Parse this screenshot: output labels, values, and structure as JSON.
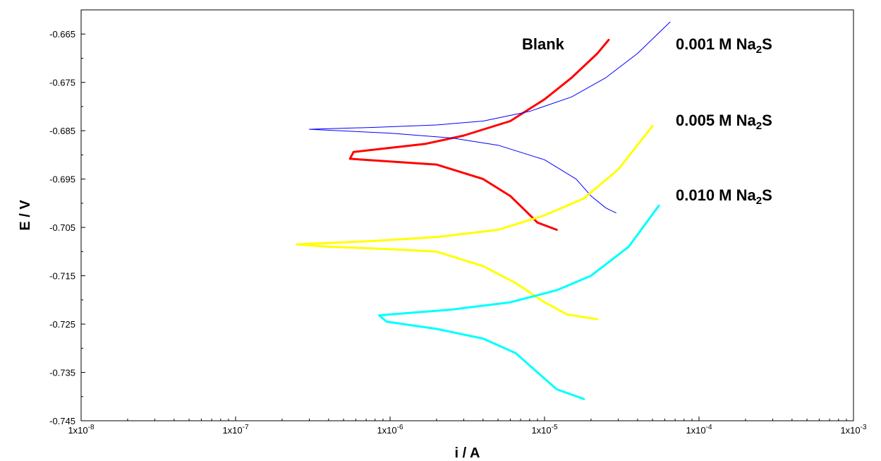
{
  "chart_data": {
    "type": "line",
    "xlabel": "i / A",
    "ylabel": "E / V",
    "xscale": "log",
    "xlim": [
      1e-08,
      0.001
    ],
    "ylim": [
      -0.745,
      -0.66
    ],
    "grid": false,
    "x_ticks": [
      {
        "value": 1e-08,
        "label": "1x10",
        "exp": "-8"
      },
      {
        "value": 1e-07,
        "label": "1x10",
        "exp": "-7"
      },
      {
        "value": 1e-06,
        "label": "1x10",
        "exp": "-6"
      },
      {
        "value": 1e-05,
        "label": "1x10",
        "exp": "-5"
      },
      {
        "value": 0.0001,
        "label": "1x10",
        "exp": "-4"
      },
      {
        "value": 0.001,
        "label": "1x10",
        "exp": "-3"
      }
    ],
    "y_ticks": [
      {
        "value": -0.665,
        "label": "-0.665"
      },
      {
        "value": -0.675,
        "label": "-0.675"
      },
      {
        "value": -0.685,
        "label": "-0.685"
      },
      {
        "value": -0.695,
        "label": "-0.695"
      },
      {
        "value": -0.705,
        "label": "-0.705"
      },
      {
        "value": -0.715,
        "label": "-0.715"
      },
      {
        "value": -0.725,
        "label": "-0.725"
      },
      {
        "value": -0.735,
        "label": "-0.735"
      },
      {
        "value": -0.745,
        "label": "-0.745"
      }
    ],
    "series": [
      {
        "name": "Blank",
        "color": "#ff0000",
        "stroke_width": 3,
        "x": [
          2.6e-05,
          2.2e-05,
          1.5e-05,
          1e-05,
          6e-06,
          3e-06,
          1.7e-06,
          5.8e-07,
          5.5e-07,
          2e-06,
          4e-06,
          6e-06,
          7.5e-06,
          9e-06,
          1.2e-05
        ],
        "y": [
          -0.6662,
          -0.669,
          -0.674,
          -0.6785,
          -0.683,
          -0.686,
          -0.6877,
          -0.6894,
          -0.6908,
          -0.692,
          -0.695,
          -0.6985,
          -0.7015,
          -0.704,
          -0.7055
        ]
      },
      {
        "name": "0.001 M Na2S",
        "label_main": "0.001 M Na",
        "label_sub": "2",
        "label_tail": "S",
        "color": "#0000ff",
        "stroke_width": 1,
        "x": [
          6.5e-05,
          4e-05,
          2.5e-05,
          1.5e-05,
          8e-06,
          4e-06,
          2e-06,
          8e-07,
          3e-07,
          1e-06,
          2.5e-06,
          5e-06,
          1e-05,
          1.6e-05,
          2e-05,
          2.5e-05,
          2.9e-05
        ],
        "y": [
          -0.6625,
          -0.669,
          -0.674,
          -0.678,
          -0.681,
          -0.683,
          -0.6838,
          -0.6843,
          -0.6847,
          -0.6855,
          -0.6865,
          -0.688,
          -0.691,
          -0.695,
          -0.6985,
          -0.701,
          -0.702
        ]
      },
      {
        "name": "0.005 M Na2S",
        "label_main": "0.005 M Na",
        "label_sub": "2",
        "label_tail": "S",
        "color": "#ffff00",
        "stroke_width": 3,
        "x": [
          5e-05,
          3e-05,
          1.8e-05,
          1e-05,
          5e-06,
          2e-06,
          8e-07,
          2.5e-07,
          4e-07,
          1e-06,
          2e-06,
          4e-06,
          6.5e-06,
          1e-05,
          1.4e-05,
          2.2e-05
        ],
        "y": [
          -0.684,
          -0.693,
          -0.699,
          -0.7025,
          -0.7055,
          -0.707,
          -0.7078,
          -0.7085,
          -0.709,
          -0.7095,
          -0.71,
          -0.713,
          -0.7165,
          -0.7205,
          -0.723,
          -0.724
        ]
      },
      {
        "name": "0.010 M Na2S",
        "label_main": "0.010 M Na",
        "label_sub": "2",
        "label_tail": "S",
        "color": "#00ffff",
        "stroke_width": 3,
        "x": [
          5.5e-05,
          3.5e-05,
          2e-05,
          1.2e-05,
          6e-06,
          2.5e-06,
          1e-06,
          8.5e-07,
          9.5e-07,
          2e-06,
          4e-06,
          6.5e-06,
          9e-06,
          1.2e-05,
          1.8e-05
        ],
        "y": [
          -0.7005,
          -0.709,
          -0.715,
          -0.718,
          -0.7205,
          -0.722,
          -0.723,
          -0.7232,
          -0.7245,
          -0.726,
          -0.728,
          -0.731,
          -0.735,
          -0.7385,
          -0.7405
        ]
      }
    ]
  }
}
